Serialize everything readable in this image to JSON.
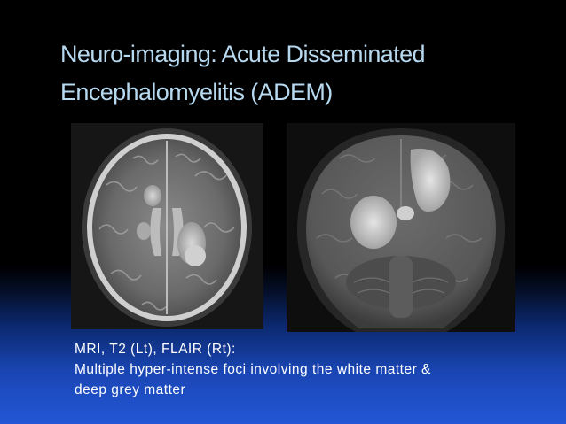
{
  "slide": {
    "title_line1": "Neuro-imaging: Acute Disseminated",
    "title_line2": "Encephalomyelitis (ADEM)",
    "images": [
      {
        "name": "mri-t2-axial-left",
        "kind": "MRI scan image"
      },
      {
        "name": "mri-flair-coronal-right",
        "kind": "MRI scan image"
      }
    ],
    "caption_line1": "MRI, T2 (Lt), FLAIR (Rt):",
    "caption_line2": "Multiple hyper-intense foci involving the white matter &",
    "caption_line3": "deep grey matter"
  },
  "colors": {
    "title": "#b7d9ef",
    "caption": "#ffffff",
    "background_top": "#000000",
    "background_bottom": "#2356d6"
  }
}
